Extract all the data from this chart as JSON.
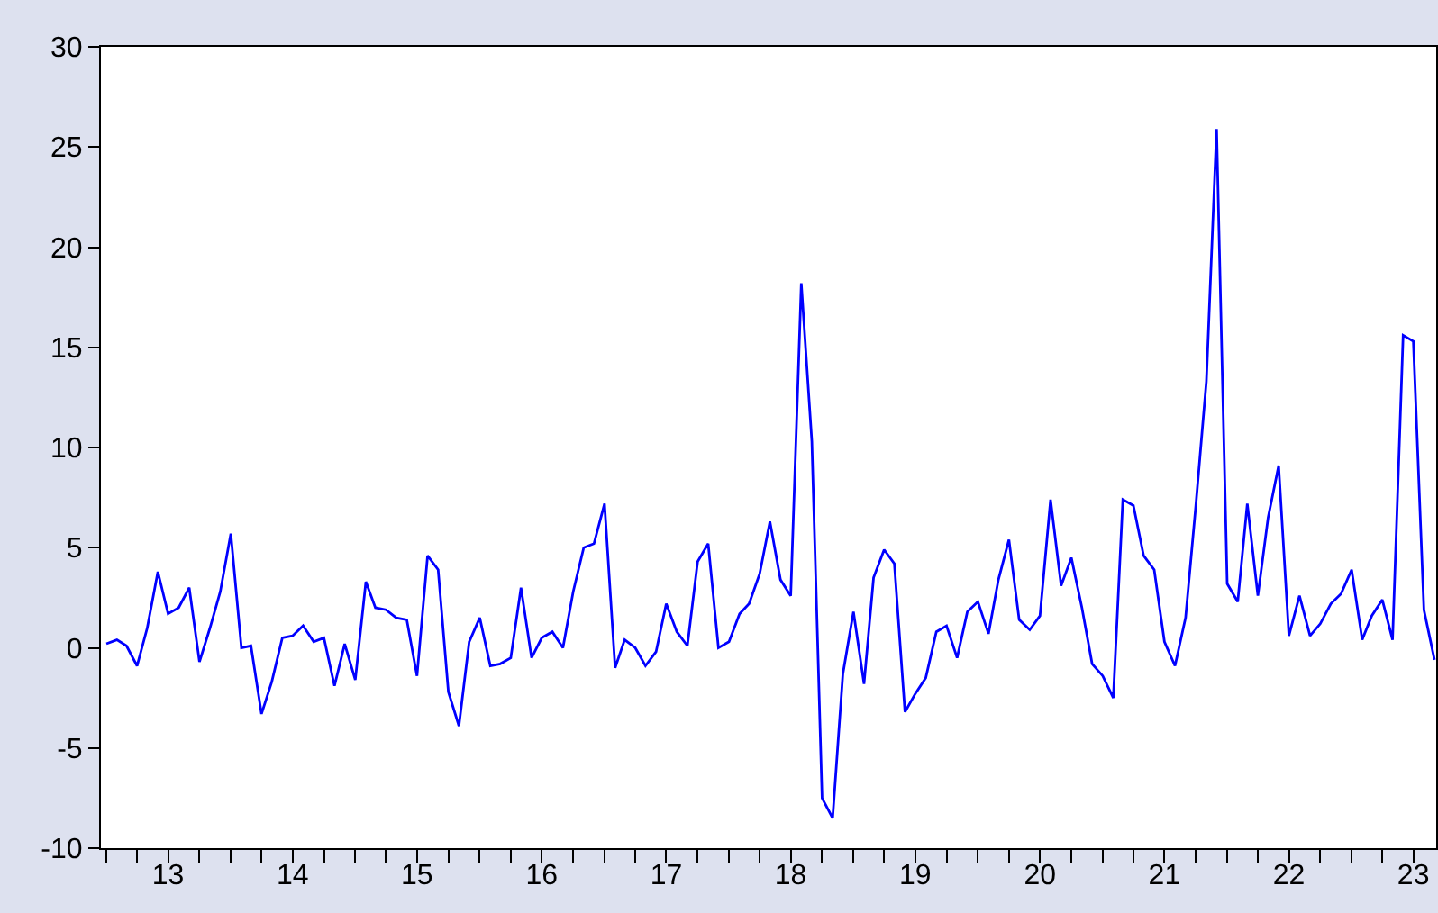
{
  "chart_data": {
    "type": "line",
    "x": [
      "2013-01",
      "2013-02",
      "2013-03",
      "2013-04",
      "2013-05",
      "2013-06",
      "2013-07",
      "2013-08",
      "2013-09",
      "2013-10",
      "2013-11",
      "2013-12",
      "2014-01",
      "2014-02",
      "2014-03",
      "2014-04",
      "2014-05",
      "2014-06",
      "2014-07",
      "2014-08",
      "2014-09",
      "2014-10",
      "2014-11",
      "2014-12",
      "2015-01",
      "2015-02",
      "2015-03",
      "2015-04",
      "2015-05",
      "2015-06",
      "2015-07",
      "2015-08",
      "2015-09",
      "2015-10",
      "2015-11",
      "2015-12",
      "2016-01",
      "2016-02",
      "2016-03",
      "2016-04",
      "2016-05",
      "2016-06",
      "2016-07",
      "2016-08",
      "2016-09",
      "2016-10",
      "2016-11",
      "2016-12",
      "2017-01",
      "2017-02",
      "2017-03",
      "2017-04",
      "2017-05",
      "2017-06",
      "2017-07",
      "2017-08",
      "2017-09",
      "2017-10",
      "2017-11",
      "2017-12",
      "2018-01",
      "2018-02",
      "2018-03",
      "2018-04",
      "2018-05",
      "2018-06",
      "2018-07",
      "2018-08",
      "2018-09",
      "2018-10",
      "2018-11",
      "2018-12",
      "2019-01",
      "2019-02",
      "2019-03",
      "2019-04",
      "2019-05",
      "2019-06",
      "2019-07",
      "2019-08",
      "2019-09",
      "2019-10",
      "2019-11",
      "2019-12",
      "2020-01",
      "2020-02",
      "2020-03",
      "2020-04",
      "2020-05",
      "2020-06",
      "2020-07",
      "2020-08",
      "2020-09",
      "2020-10",
      "2020-11",
      "2020-12",
      "2021-01",
      "2021-02",
      "2021-03",
      "2021-04",
      "2021-05",
      "2021-06",
      "2021-07",
      "2021-08",
      "2021-09",
      "2021-10",
      "2021-11",
      "2021-12",
      "2022-01",
      "2022-02",
      "2022-03",
      "2022-04",
      "2022-05",
      "2022-06",
      "2022-07",
      "2022-08",
      "2022-09",
      "2022-10",
      "2022-11",
      "2022-12",
      "2023-01",
      "2023-02",
      "2023-03",
      "2023-04",
      "2023-05",
      "2023-06",
      "2023-07",
      "2023-08",
      "2023-09"
    ],
    "series": [
      {
        "color": "#0000ff",
        "values": [
          0.2,
          0.4,
          0.1,
          -0.9,
          1.0,
          3.8,
          1.7,
          2.0,
          3.0,
          -0.7,
          1.0,
          2.8,
          5.7,
          0.0,
          0.1,
          -3.3,
          -1.7,
          0.5,
          0.6,
          1.1,
          0.3,
          0.5,
          -1.9,
          0.2,
          -1.6,
          3.3,
          2.0,
          1.9,
          1.5,
          1.4,
          -1.4,
          4.6,
          3.9,
          -2.2,
          -3.9,
          0.3,
          1.5,
          -0.9,
          -0.8,
          -0.5,
          3.0,
          -0.5,
          0.5,
          0.8,
          0.0,
          2.8,
          5.0,
          5.2,
          7.2,
          -1.0,
          0.4,
          0.0,
          -0.9,
          -0.2,
          2.2,
          0.8,
          0.1,
          4.3,
          5.2,
          0.0,
          0.3,
          1.7,
          2.2,
          3.7,
          6.3,
          3.4,
          2.6,
          18.2,
          10.3,
          -7.5,
          -8.5,
          -1.3,
          1.8,
          -1.8,
          3.5,
          4.9,
          4.2,
          -3.2,
          -2.3,
          -1.5,
          0.8,
          1.1,
          -0.5,
          1.8,
          2.3,
          0.7,
          3.4,
          5.4,
          1.4,
          0.9,
          1.6,
          7.4,
          3.1,
          4.5,
          2.0,
          -0.8,
          -1.4,
          -2.5,
          7.4,
          7.1,
          4.6,
          3.9,
          0.3,
          -0.9,
          1.5,
          7.1,
          13.3,
          25.9,
          3.2,
          2.3,
          7.2,
          2.6,
          6.5,
          9.1,
          0.6,
          2.6,
          0.6,
          1.2,
          2.2,
          2.7,
          3.9,
          0.4,
          1.6,
          2.4,
          0.4,
          15.6,
          15.3,
          1.9,
          -0.6
        ]
      }
    ],
    "xlim": [
      "2012-12-16",
      "2023-09-06"
    ],
    "xticks": [
      {
        "value": "2013-07-01",
        "label": "13"
      },
      {
        "value": "2014-07-01",
        "label": "14"
      },
      {
        "value": "2015-07-01",
        "label": "15"
      },
      {
        "value": "2016-07-01",
        "label": "16"
      },
      {
        "value": "2017-07-01",
        "label": "17"
      },
      {
        "value": "2018-07-01",
        "label": "18"
      },
      {
        "value": "2019-07-01",
        "label": "19"
      },
      {
        "value": "2020-07-01",
        "label": "20"
      },
      {
        "value": "2021-07-01",
        "label": "21"
      },
      {
        "value": "2022-07-01",
        "label": "22"
      },
      {
        "value": "2023-07-01",
        "label": "23"
      }
    ],
    "ylim": [
      -10,
      30
    ],
    "yticks": [
      -10,
      -5,
      0,
      5,
      10,
      15,
      20,
      25,
      30
    ],
    "grid": false,
    "marker": "none",
    "line_style": "solid"
  }
}
